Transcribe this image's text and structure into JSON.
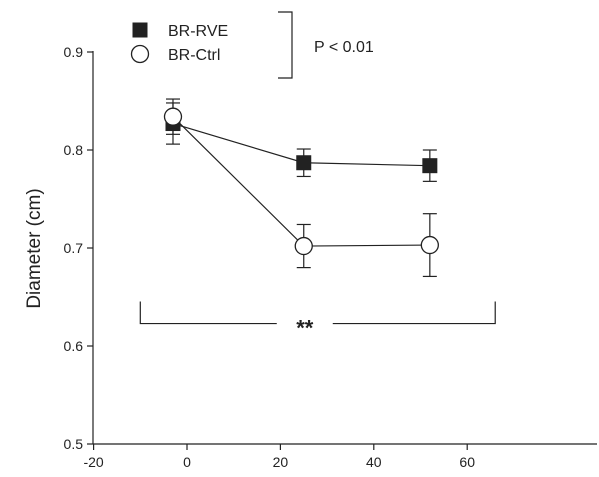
{
  "chart_data": {
    "type": "line",
    "title": "",
    "xlabel": "",
    "ylabel": "Diameter (cm)",
    "xlim": [
      -20,
      70
    ],
    "ylim": [
      0.5,
      0.9
    ],
    "x_ticks": [
      -20,
      0,
      20,
      40,
      60
    ],
    "y_ticks": [
      0.5,
      0.6,
      0.7,
      0.8,
      0.9
    ],
    "x_tick_labels": [
      "-20",
      "0",
      "20",
      "40",
      "60"
    ],
    "y_tick_labels": [
      "0.5",
      "0.6",
      "0.7",
      "0.8",
      "0.9"
    ],
    "legend_position": "top-left",
    "grid": false,
    "series": [
      {
        "name": "BR-RVE",
        "marker": "filled-square",
        "color": "#222222",
        "x": [
          -3,
          25,
          52
        ],
        "y": [
          0.827,
          0.787,
          0.784
        ],
        "error": [
          0.021,
          0.014,
          0.016
        ]
      },
      {
        "name": "BR-Ctrl",
        "marker": "open-circle",
        "color": "#222222",
        "x": [
          -3,
          25,
          52
        ],
        "y": [
          0.834,
          0.702,
          0.703
        ],
        "error": [
          0.018,
          0.022,
          0.032
        ]
      }
    ],
    "annotations": {
      "bracket_label": "P < 0.01",
      "significance_label": "**",
      "significance_span": [
        -10,
        66
      ],
      "significance_y": 0.627
    }
  }
}
